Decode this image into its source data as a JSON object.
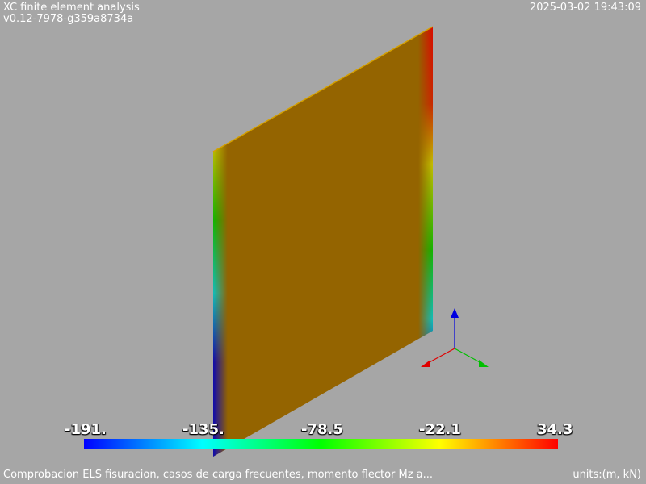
{
  "header": {
    "title": "XC finite element analysis",
    "version": "v0.12-7978-g359a8734a",
    "timestamp": "2025-03-02 19:43:09"
  },
  "footer": {
    "caption": "Comprobacion ELS fisuracion, casos de carga frecuentes, momento flector Mz a...",
    "units": "units:(m, kN)"
  },
  "colorbar": {
    "ticks": [
      "-191.",
      "-135.",
      "-78.5",
      "-22.1",
      "34.3"
    ]
  },
  "colors": {
    "background": "#a6a6a6",
    "plate": "#946400",
    "axis_x": "#e00000",
    "axis_y": "#00c000",
    "axis_z": "#0000e0"
  }
}
